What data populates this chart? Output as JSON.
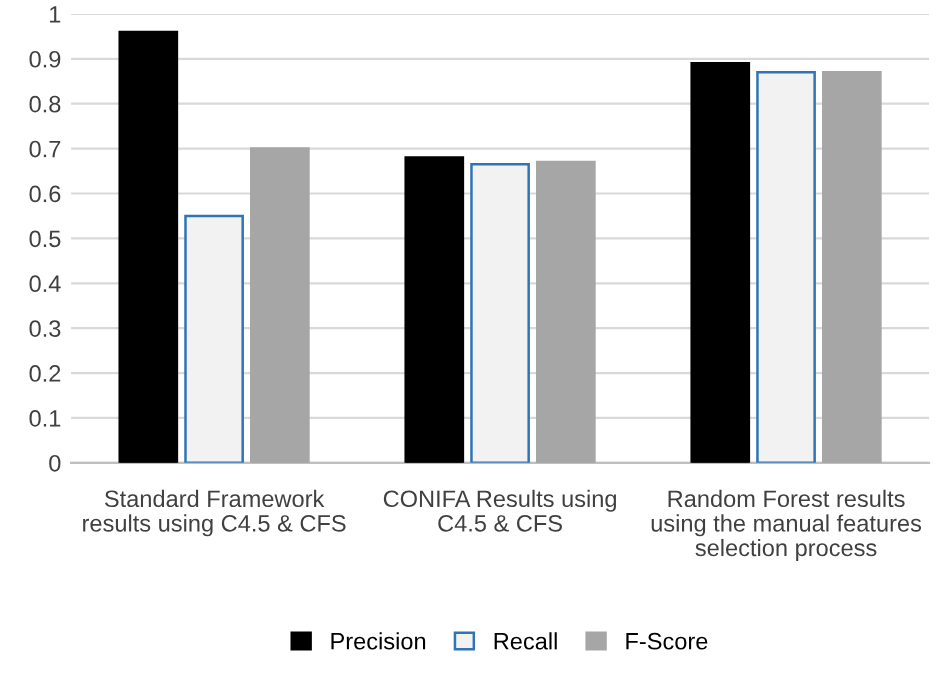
{
  "chart_data": {
    "type": "bar",
    "categories": [
      "Standard Framework results using C4.5 & CFS",
      "CONIFA Results using C4.5 & CFS",
      "Random Forest results using the manual features selection process"
    ],
    "series": [
      {
        "name": "Precision",
        "color": "#000000",
        "values": [
          0.96,
          0.68,
          0.89
        ]
      },
      {
        "name": "Recall",
        "color": "#f2f2f2",
        "values": [
          0.55,
          0.665,
          0.87
        ]
      },
      {
        "name": "F-Score",
        "color": "#a6a6a6",
        "values": [
          0.7,
          0.67,
          0.87
        ]
      }
    ],
    "ylim": [
      0,
      1
    ],
    "yticks": [
      0,
      0.1,
      0.2,
      0.3,
      0.4,
      0.5,
      0.6,
      0.7,
      0.8,
      0.9,
      1
    ],
    "grid": "y",
    "legend": "bottom"
  }
}
